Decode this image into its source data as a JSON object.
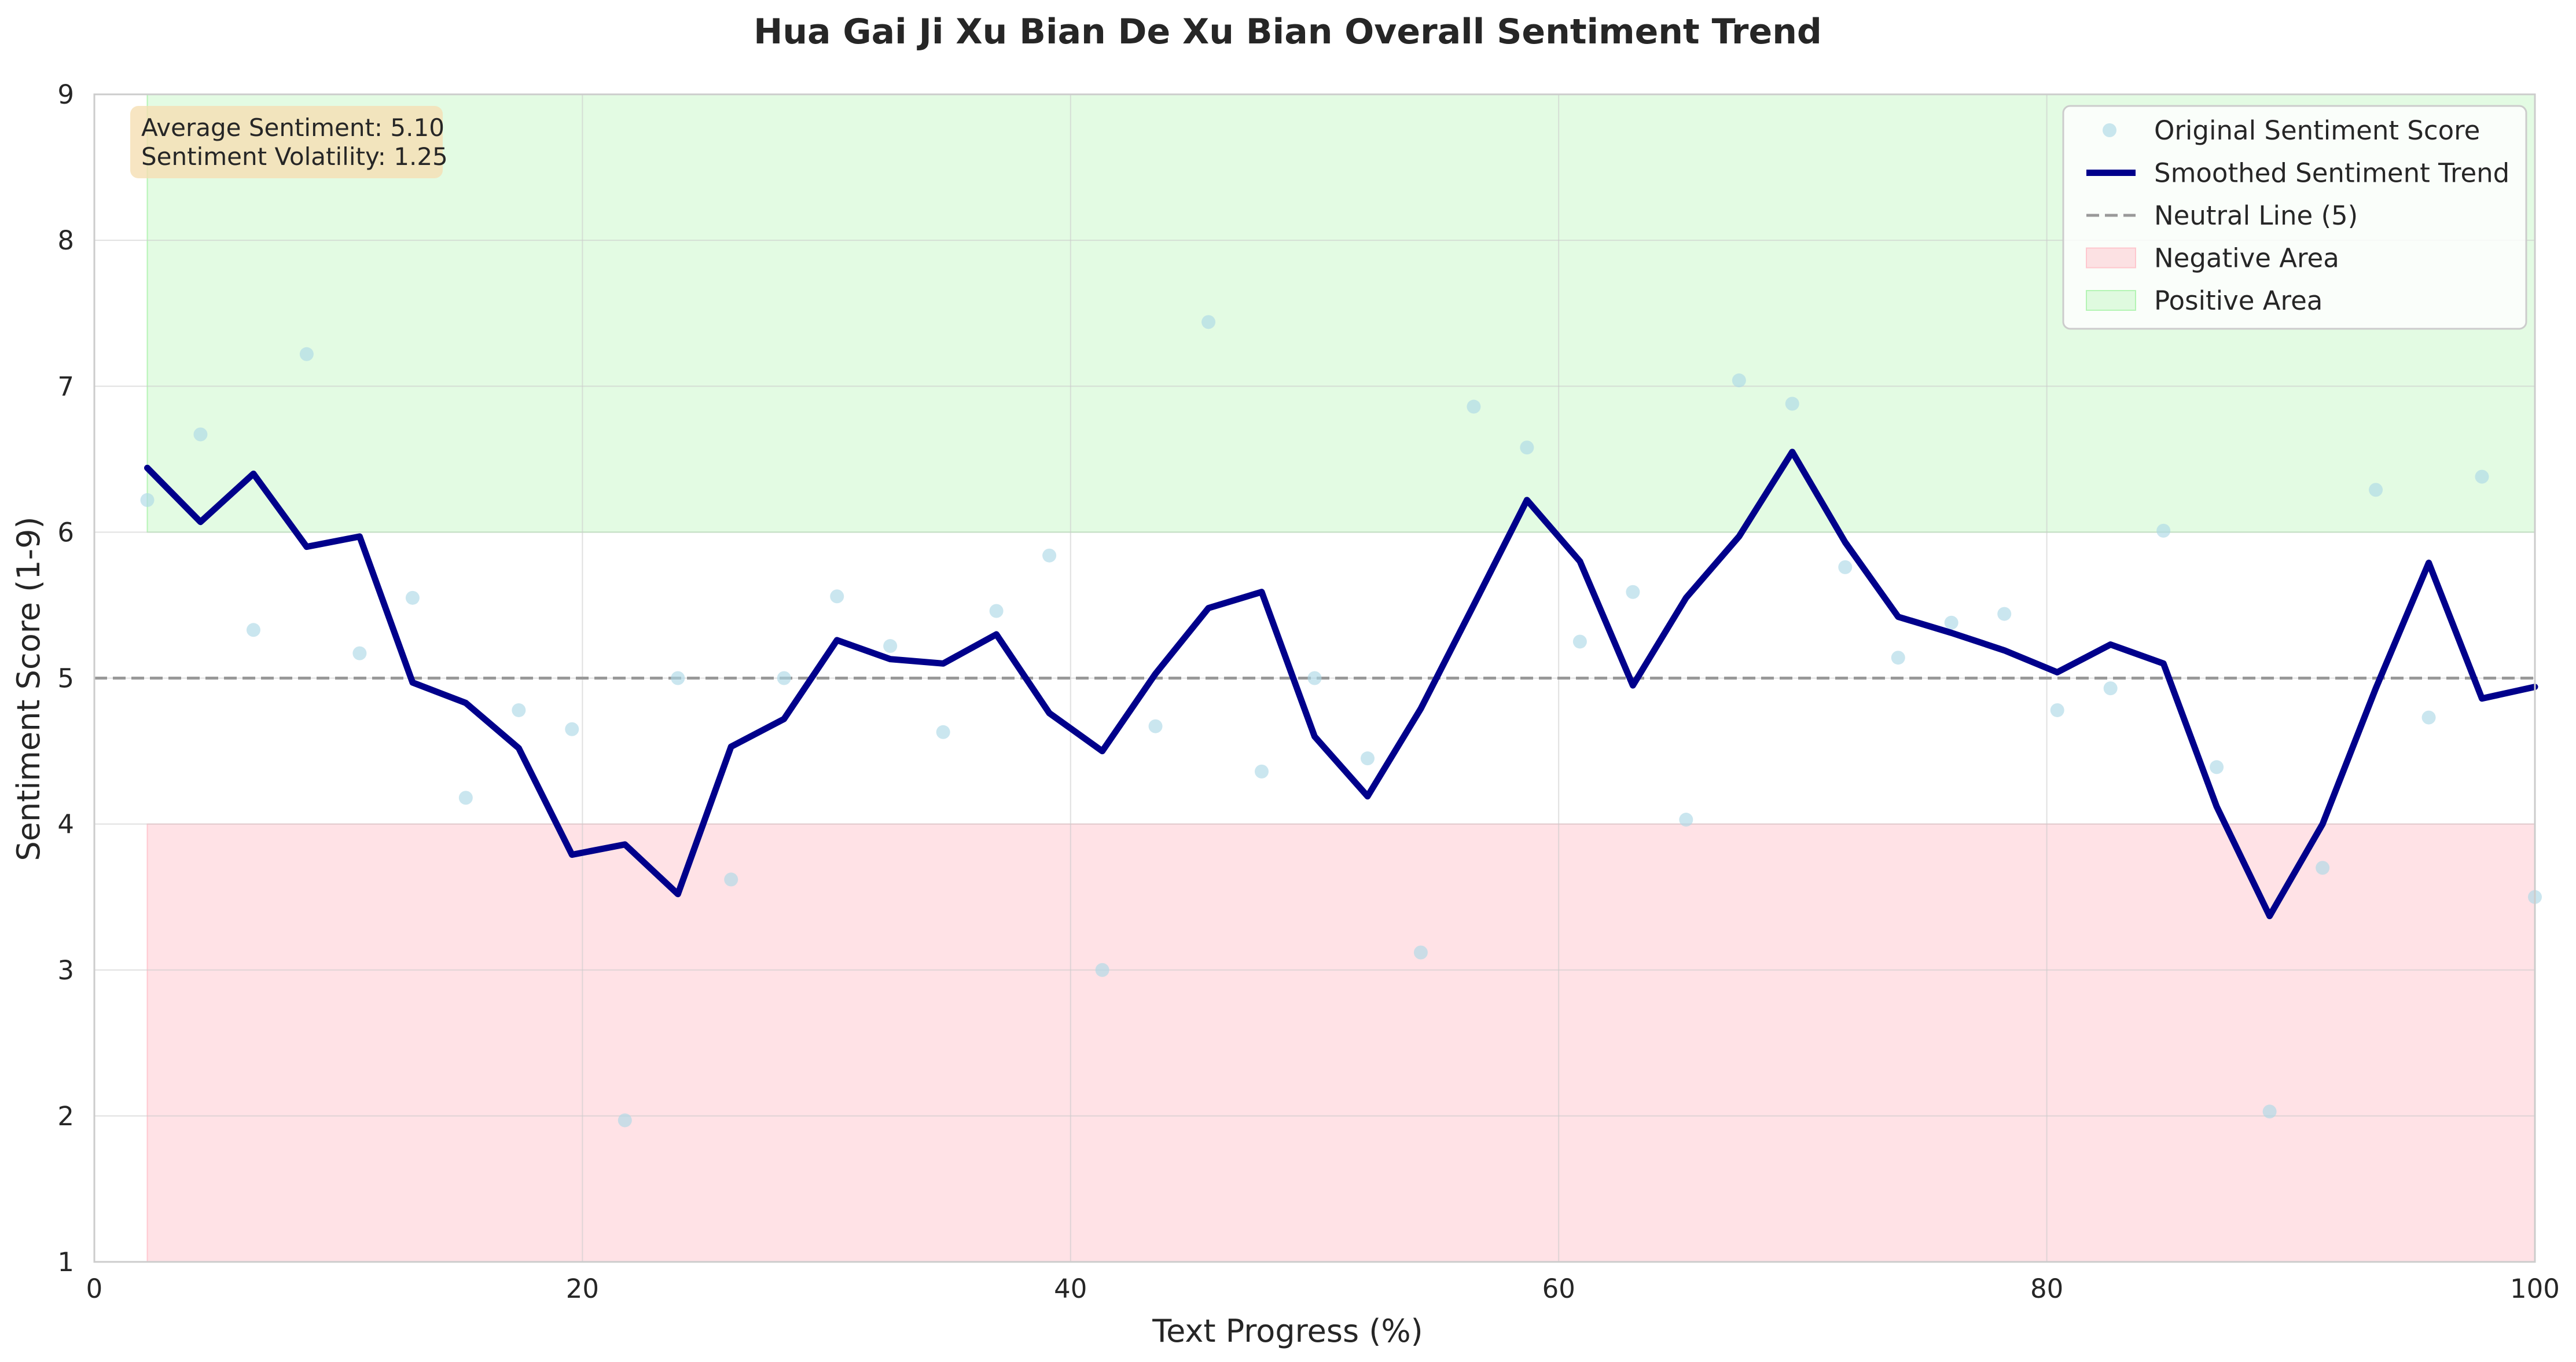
{
  "chart_data": {
    "type": "line",
    "title": "Hua Gai Ji Xu Bian De Xu Bian Overall Sentiment Trend",
    "xlabel": "Text Progress (%)",
    "ylabel": "Sentiment Score (1-9)",
    "xlim": [
      0,
      100
    ],
    "ylim": [
      1,
      9
    ],
    "xticks": [
      0,
      20,
      40,
      60,
      80,
      100
    ],
    "yticks": [
      1,
      2,
      3,
      4,
      5,
      6,
      7,
      8,
      9
    ],
    "grid": true,
    "legend_position": "top-right",
    "neutral_line": 5,
    "negative_area": [
      1,
      4
    ],
    "positive_area": [
      6,
      9
    ],
    "area_x_range": [
      2.17,
      100
    ],
    "annotations": [
      "Average Sentiment: 5.10",
      "Sentiment Volatility: 1.25"
    ],
    "x": [
      2.17,
      4.35,
      6.52,
      8.7,
      10.87,
      13.04,
      15.22,
      17.39,
      19.57,
      21.74,
      23.91,
      26.09,
      28.26,
      30.43,
      32.61,
      34.78,
      36.96,
      39.13,
      41.3,
      43.48,
      45.65,
      47.83,
      50.0,
      52.17,
      54.35,
      56.52,
      58.7,
      60.87,
      63.04,
      65.22,
      67.39,
      69.57,
      71.74,
      73.91,
      76.09,
      78.26,
      80.43,
      82.61,
      84.78,
      86.96,
      89.13,
      91.3,
      93.48,
      95.65,
      97.83,
      100.0
    ],
    "series": [
      {
        "name": "Original Sentiment Score",
        "kind": "scatter",
        "values": [
          6.22,
          6.67,
          5.33,
          7.22,
          5.17,
          5.55,
          4.18,
          4.78,
          4.65,
          1.97,
          5.0,
          3.62,
          5.0,
          5.56,
          5.22,
          4.63,
          5.46,
          5.84,
          3.0,
          4.67,
          7.44,
          4.36,
          5.0,
          4.45,
          3.12,
          6.86,
          6.58,
          5.25,
          5.59,
          4.03,
          7.04,
          6.88,
          5.76,
          5.14,
          5.38,
          5.44,
          4.78,
          4.93,
          6.01,
          4.39,
          2.03,
          3.7,
          6.29,
          4.73,
          6.38,
          3.5
        ]
      },
      {
        "name": "Smoothed Sentiment Trend",
        "kind": "line",
        "values": [
          6.44,
          6.07,
          6.4,
          5.9,
          5.97,
          4.97,
          4.83,
          4.52,
          3.79,
          3.86,
          3.52,
          4.53,
          4.72,
          5.26,
          5.13,
          5.1,
          5.3,
          4.76,
          4.5,
          5.03,
          5.48,
          5.59,
          4.6,
          4.19,
          4.79,
          5.5,
          6.22,
          5.8,
          4.95,
          5.55,
          5.97,
          6.55,
          5.93,
          5.42,
          5.31,
          5.19,
          5.04,
          5.23,
          5.1,
          4.12,
          3.37,
          4.0,
          4.93,
          5.79,
          4.86,
          4.94
        ]
      }
    ],
    "legend": [
      "Original Sentiment Score",
      "Smoothed Sentiment Trend",
      "Neutral Line (5)",
      "Negative Area",
      "Positive Area"
    ],
    "colors": {
      "scatter": "#add8e6",
      "trend": "#00008b",
      "neutral": "#999999",
      "negative": "#ffb6c1",
      "positive": "#90ee90",
      "stat_box": "#f5deb3"
    }
  }
}
